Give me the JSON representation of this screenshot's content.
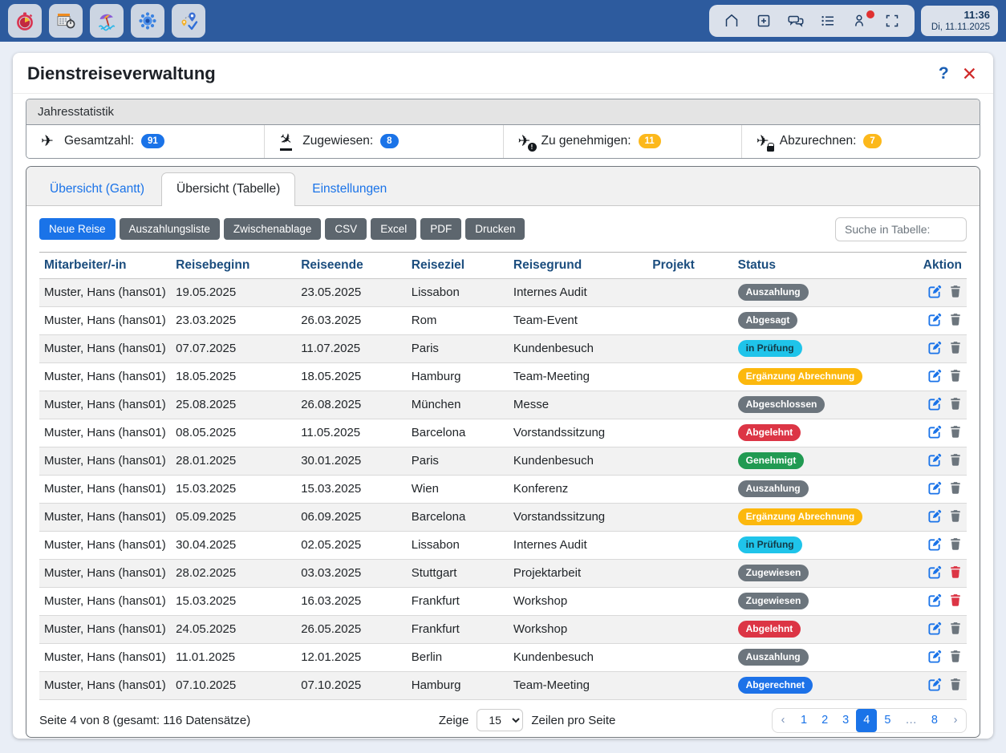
{
  "topbar": {
    "app_icons": [
      "timer-icon",
      "calendar-timer-icon",
      "vacation-icon",
      "gear-icon",
      "travel-check-icon"
    ],
    "system_icons": [
      "home-icon",
      "add-window-icon",
      "chat-icon",
      "list-icon",
      "user-icon",
      "fullscreen-icon"
    ],
    "notification_dot_color": "#e03131",
    "clock": {
      "time": "11:36",
      "date": "Di, 11.11.2025"
    }
  },
  "dialog": {
    "title": "Dienstreiseverwaltung",
    "help_label": "?",
    "close_label": "✕"
  },
  "stats": {
    "section_title": "Jahresstatistik",
    "items": [
      {
        "icon": "plane",
        "label": "Gesamtzahl:",
        "value": "91",
        "badge_color": "#1a73e8"
      },
      {
        "icon": "plane-arrival",
        "label": "Zugewiesen:",
        "value": "8",
        "badge_color": "#1a73e8"
      },
      {
        "icon": "plane-alert",
        "label": "Zu genehmigen:",
        "value": "11",
        "badge_color": "#fcb81b"
      },
      {
        "icon": "plane-lock",
        "label": "Abzurechnen:",
        "value": "7",
        "badge_color": "#fcb81b"
      }
    ]
  },
  "tabs": [
    {
      "label": "Übersicht (Gantt)",
      "active": false
    },
    {
      "label": "Übersicht (Tabelle)",
      "active": true
    },
    {
      "label": "Einstellungen",
      "active": false
    }
  ],
  "toolbar": {
    "buttons": [
      {
        "label": "Neue Reise",
        "style": "primary"
      },
      {
        "label": "Auszahlungsliste",
        "style": "secondary"
      },
      {
        "label": "Zwischenablage",
        "style": "secondary"
      },
      {
        "label": "CSV",
        "style": "secondary"
      },
      {
        "label": "Excel",
        "style": "secondary"
      },
      {
        "label": "PDF",
        "style": "secondary"
      },
      {
        "label": "Drucken",
        "style": "secondary"
      }
    ],
    "search_placeholder": "Suche in Tabelle:"
  },
  "status_colors": {
    "gray": "#6c757d",
    "cyan": "#1fc4ea",
    "yellow": "#fcb80d",
    "red": "#dc3545",
    "green": "#219a52",
    "blue": "#1d72e8"
  },
  "table": {
    "columns": [
      "Mitarbeiter/-in",
      "Reisebeginn",
      "Reiseende",
      "Reiseziel",
      "Reisegrund",
      "Projekt",
      "Status",
      "Aktion"
    ],
    "rows": [
      {
        "mitarbeiter": "Muster, Hans (hans01)",
        "beginn": "19.05.2025",
        "ende": "23.05.2025",
        "ziel": "Lissabon",
        "grund": "Internes Audit",
        "projekt": "",
        "status": "Auszahlung",
        "status_type": "gray",
        "trash_red": false
      },
      {
        "mitarbeiter": "Muster, Hans (hans01)",
        "beginn": "23.03.2025",
        "ende": "26.03.2025",
        "ziel": "Rom",
        "grund": "Team-Event",
        "projekt": "",
        "status": "Abgesagt",
        "status_type": "gray",
        "trash_red": false
      },
      {
        "mitarbeiter": "Muster, Hans (hans01)",
        "beginn": "07.07.2025",
        "ende": "11.07.2025",
        "ziel": "Paris",
        "grund": "Kundenbesuch",
        "projekt": "",
        "status": "in Prüfung",
        "status_type": "cyan",
        "trash_red": false
      },
      {
        "mitarbeiter": "Muster, Hans (hans01)",
        "beginn": "18.05.2025",
        "ende": "18.05.2025",
        "ziel": "Hamburg",
        "grund": "Team-Meeting",
        "projekt": "",
        "status": "Ergänzung Abrechnung",
        "status_type": "yellow",
        "trash_red": false
      },
      {
        "mitarbeiter": "Muster, Hans (hans01)",
        "beginn": "25.08.2025",
        "ende": "26.08.2025",
        "ziel": "München",
        "grund": "Messe",
        "projekt": "",
        "status": "Abgeschlossen",
        "status_type": "gray",
        "trash_red": false
      },
      {
        "mitarbeiter": "Muster, Hans (hans01)",
        "beginn": "08.05.2025",
        "ende": "11.05.2025",
        "ziel": "Barcelona",
        "grund": "Vorstandssitzung",
        "projekt": "",
        "status": "Abgelehnt",
        "status_type": "red",
        "trash_red": false
      },
      {
        "mitarbeiter": "Muster, Hans (hans01)",
        "beginn": "28.01.2025",
        "ende": "30.01.2025",
        "ziel": "Paris",
        "grund": "Kundenbesuch",
        "projekt": "",
        "status": "Genehmigt",
        "status_type": "green",
        "trash_red": false
      },
      {
        "mitarbeiter": "Muster, Hans (hans01)",
        "beginn": "15.03.2025",
        "ende": "15.03.2025",
        "ziel": "Wien",
        "grund": "Konferenz",
        "projekt": "",
        "status": "Auszahlung",
        "status_type": "gray",
        "trash_red": false
      },
      {
        "mitarbeiter": "Muster, Hans (hans01)",
        "beginn": "05.09.2025",
        "ende": "06.09.2025",
        "ziel": "Barcelona",
        "grund": "Vorstandssitzung",
        "projekt": "",
        "status": "Ergänzung Abrechnung",
        "status_type": "yellow",
        "trash_red": false
      },
      {
        "mitarbeiter": "Muster, Hans (hans01)",
        "beginn": "30.04.2025",
        "ende": "02.05.2025",
        "ziel": "Lissabon",
        "grund": "Internes Audit",
        "projekt": "",
        "status": "in Prüfung",
        "status_type": "cyan",
        "trash_red": false
      },
      {
        "mitarbeiter": "Muster, Hans (hans01)",
        "beginn": "28.02.2025",
        "ende": "03.03.2025",
        "ziel": "Stuttgart",
        "grund": "Projektarbeit",
        "projekt": "",
        "status": "Zugewiesen",
        "status_type": "gray",
        "trash_red": true
      },
      {
        "mitarbeiter": "Muster, Hans (hans01)",
        "beginn": "15.03.2025",
        "ende": "16.03.2025",
        "ziel": "Frankfurt",
        "grund": "Workshop",
        "projekt": "",
        "status": "Zugewiesen",
        "status_type": "gray",
        "trash_red": true
      },
      {
        "mitarbeiter": "Muster, Hans (hans01)",
        "beginn": "24.05.2025",
        "ende": "26.05.2025",
        "ziel": "Frankfurt",
        "grund": "Workshop",
        "projekt": "",
        "status": "Abgelehnt",
        "status_type": "red",
        "trash_red": false
      },
      {
        "mitarbeiter": "Muster, Hans (hans01)",
        "beginn": "11.01.2025",
        "ende": "12.01.2025",
        "ziel": "Berlin",
        "grund": "Kundenbesuch",
        "projekt": "",
        "status": "Auszahlung",
        "status_type": "gray",
        "trash_red": false
      },
      {
        "mitarbeiter": "Muster, Hans (hans01)",
        "beginn": "07.10.2025",
        "ende": "07.10.2025",
        "ziel": "Hamburg",
        "grund": "Team-Meeting",
        "projekt": "",
        "status": "Abgerechnet",
        "status_type": "blue",
        "trash_red": false
      }
    ]
  },
  "footer": {
    "page_info": "Seite 4 von 8 (gesamt: 116 Datensätze)",
    "show_label": "Zeige",
    "rows_per_page": "15",
    "rows_label": "Zeilen pro Seite",
    "pages": [
      {
        "label": "‹",
        "type": "nav"
      },
      {
        "label": "1"
      },
      {
        "label": "2"
      },
      {
        "label": "3"
      },
      {
        "label": "4",
        "active": true
      },
      {
        "label": "5"
      },
      {
        "label": "…",
        "type": "ellipsis"
      },
      {
        "label": "8"
      },
      {
        "label": "›",
        "type": "nav"
      }
    ]
  }
}
